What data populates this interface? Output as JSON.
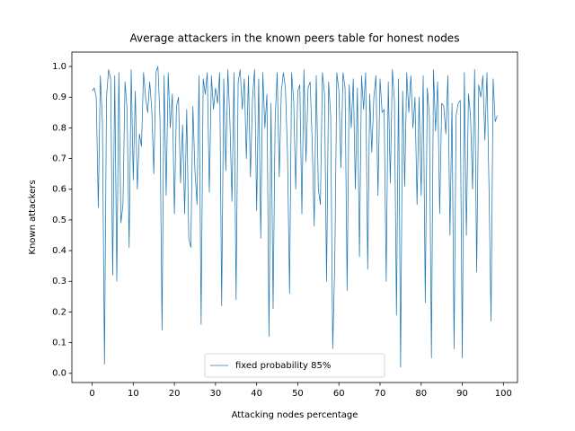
{
  "chart_data": {
    "type": "line",
    "title": "Average attackers in the known peers table for honest nodes",
    "x_label": "Attacking nodes percentage",
    "y_label": "Known attackers",
    "x": [
      0,
      0.5,
      1,
      1.5,
      2,
      2.5,
      3,
      3.5,
      4,
      4.5,
      5,
      5.5,
      6,
      6.5,
      7,
      7.5,
      8,
      8.5,
      9,
      9.5,
      10,
      10.5,
      11,
      11.5,
      12,
      12.5,
      13,
      13.5,
      14,
      14.5,
      15,
      15.5,
      16,
      16.5,
      17,
      17.5,
      18,
      18.5,
      19,
      19.5,
      20,
      20.5,
      21,
      21.5,
      22,
      22.5,
      23,
      23.5,
      24,
      24.5,
      25,
      25.5,
      26,
      26.5,
      27,
      27.5,
      28,
      28.5,
      29,
      29.5,
      30,
      30.5,
      31,
      31.5,
      32,
      32.5,
      33,
      33.5,
      34,
      34.5,
      35,
      35.5,
      36,
      36.5,
      37,
      37.5,
      38,
      38.5,
      39,
      39.5,
      40,
      40.5,
      41,
      41.5,
      42,
      42.5,
      43,
      43.5,
      44,
      44.5,
      45,
      45.5,
      46,
      46.5,
      47,
      47.5,
      48,
      48.5,
      49,
      49.5,
      50,
      50.5,
      51,
      51.5,
      52,
      52.5,
      53,
      53.5,
      54,
      54.5,
      55,
      55.5,
      56,
      56.5,
      57,
      57.5,
      58,
      58.5,
      59,
      59.5,
      60,
      60.5,
      61,
      61.5,
      62,
      62.5,
      63,
      63.5,
      64,
      64.5,
      65,
      65.5,
      66,
      66.5,
      67,
      67.5,
      68,
      68.5,
      69,
      69.5,
      70,
      70.5,
      71,
      71.5,
      72,
      72.5,
      73,
      73.5,
      74,
      74.5,
      75,
      75.5,
      76,
      76.5,
      77,
      77.5,
      78,
      78.5,
      79,
      79.5,
      80,
      80.5,
      81,
      81.5,
      82,
      82.5,
      83,
      83.5,
      84,
      84.5,
      85,
      85.5,
      86,
      86.5,
      87,
      87.5,
      88,
      88.5,
      89,
      89.5,
      90,
      90.5,
      91,
      91.5,
      92,
      92.5,
      93,
      93.5,
      94,
      94.5,
      95,
      95.5,
      96,
      96.5,
      97,
      97.5,
      98,
      98.5
    ],
    "series": [
      {
        "name": "fixed probability 85%",
        "color": "#1f77b4",
        "values": [
          0.92,
          0.93,
          0.9,
          0.54,
          0.97,
          0.82,
          0.03,
          0.9,
          0.99,
          0.96,
          0.32,
          0.97,
          0.3,
          0.98,
          0.49,
          0.55,
          0.95,
          0.86,
          0.41,
          0.99,
          0.63,
          0.92,
          0.6,
          0.78,
          0.74,
          0.98,
          0.9,
          0.85,
          0.95,
          0.86,
          0.65,
          0.98,
          1.0,
          0.83,
          0.14,
          0.97,
          0.58,
          0.98,
          0.8,
          0.91,
          0.52,
          0.87,
          0.9,
          0.62,
          0.81,
          0.52,
          0.86,
          0.44,
          0.41,
          0.87,
          0.66,
          0.55,
          0.97,
          0.16,
          0.96,
          0.91,
          0.98,
          0.59,
          0.97,
          0.86,
          0.93,
          0.88,
          0.98,
          0.22,
          0.96,
          0.66,
          0.99,
          0.82,
          0.56,
          0.98,
          0.24,
          0.95,
          0.99,
          0.86,
          0.96,
          0.7,
          0.97,
          0.64,
          0.9,
          0.99,
          0.53,
          0.96,
          0.44,
          0.98,
          0.8,
          0.91,
          0.12,
          0.88,
          0.21,
          0.83,
          0.98,
          0.64,
          0.92,
          0.98,
          0.93,
          0.72,
          0.26,
          0.98,
          0.89,
          0.6,
          0.92,
          0.94,
          0.52,
          0.99,
          0.69,
          0.93,
          0.95,
          0.76,
          0.48,
          0.97,
          0.6,
          0.55,
          0.98,
          0.91,
          0.3,
          0.95,
          0.84,
          0.08,
          0.36,
          0.98,
          0.92,
          0.67,
          0.98,
          0.93,
          0.27,
          0.94,
          0.8,
          0.96,
          0.6,
          0.93,
          0.38,
          0.97,
          0.86,
          0.98,
          0.34,
          0.91,
          0.72,
          0.9,
          0.97,
          0.58,
          0.96,
          0.85,
          0.86,
          0.3,
          0.95,
          0.62,
          0.99,
          0.89,
          0.19,
          0.96,
          0.02,
          0.92,
          0.61,
          0.98,
          0.85,
          0.97,
          0.8,
          0.9,
          0.55,
          0.9,
          0.58,
          0.97,
          0.23,
          0.93,
          0.84,
          0.05,
          0.99,
          0.79,
          0.95,
          0.52,
          0.88,
          0.87,
          0.78,
          0.97,
          0.45,
          0.88,
          0.08,
          0.84,
          0.88,
          0.89,
          0.05,
          0.98,
          0.45,
          0.91,
          0.84,
          0.6,
          0.99,
          0.33,
          0.94,
          0.9,
          0.97,
          0.76,
          0.98,
          0.6,
          0.17,
          0.96,
          0.82,
          0.84
        ]
      }
    ],
    "xlim": [
      -4.925,
      103.425
    ],
    "ylim": [
      -0.03,
      1.047
    ],
    "xticks": [
      0,
      10,
      20,
      30,
      40,
      50,
      60,
      70,
      80,
      90,
      100
    ],
    "yticks": [
      {
        "value": 0,
        "label": "0.0"
      },
      0.1,
      0.2,
      0.3,
      0.4,
      0.5,
      0.6,
      0.7,
      0.8,
      0.9,
      {
        "value": 1,
        "label": "1.0"
      }
    ],
    "legend": "lower center"
  }
}
